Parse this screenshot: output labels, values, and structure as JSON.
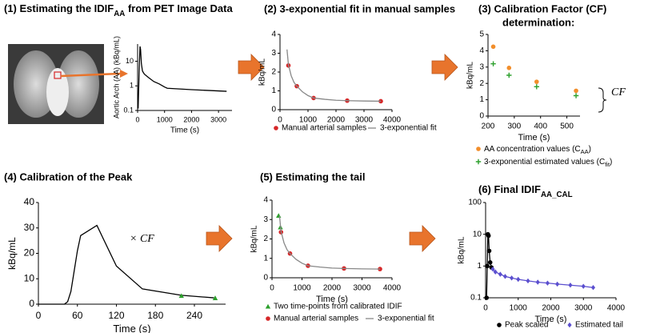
{
  "chart_data": [
    {
      "type": "line",
      "title": [
        "(1) Estimating the IDIF",
        "AA",
        " from PET Image Data"
      ],
      "xlabel": "Time (s)",
      "ylabel": "Aortic Arch (AA) (kBq/mL)",
      "yscale": "log",
      "xlim": [
        0,
        3500
      ],
      "xticks": [
        0,
        1000,
        2000,
        3000
      ],
      "ylim": [
        0.1,
        50
      ],
      "yticks": [
        0.1,
        1,
        10
      ],
      "series": [
        {
          "color": "#000000",
          "line": true,
          "x": [
            20,
            60,
            90,
            110,
            140,
            180,
            250,
            400,
            600,
            800,
            1000,
            1100,
            2000,
            3300
          ],
          "values": [
            0.12,
            5,
            40,
            30,
            8,
            4,
            3,
            2.2,
            1.5,
            1.2,
            0.9,
            0.8,
            0.7,
            0.6
          ]
        }
      ]
    },
    {
      "type": "scatter",
      "title": "(2) 3-exponential fit in manual samples",
      "ylabel": "kBq/mL",
      "xlim": [
        0,
        4000
      ],
      "xticks": [
        0,
        1000,
        2000,
        3000,
        4000
      ],
      "ylim": [
        0,
        4
      ],
      "yticks": [
        0,
        1,
        2,
        3,
        4
      ],
      "series": [
        {
          "name": "Manual arterial samples",
          "color": "#d62728",
          "marker": "circle",
          "x": [
            300,
            600,
            1200,
            2400,
            3600
          ],
          "values": [
            2.35,
            1.25,
            0.62,
            0.48,
            0.45
          ]
        },
        {
          "name": "3-exponential fit",
          "color": "#888888",
          "line": true,
          "x": [
            250,
            300,
            400,
            500,
            600,
            800,
            1000,
            1200,
            1600,
            2000,
            2400,
            3000,
            3600
          ],
          "values": [
            3.2,
            2.4,
            1.8,
            1.45,
            1.25,
            0.95,
            0.75,
            0.62,
            0.55,
            0.5,
            0.48,
            0.46,
            0.45
          ]
        }
      ]
    },
    {
      "type": "scatter",
      "title": "(3) Calibration Factor (CF)",
      "subtitle": "determination:",
      "xlabel": "Time (s)",
      "ylabel": "kBq/mL",
      "annotation": "CF",
      "xlim": [
        200,
        550
      ],
      "xticks": [
        200,
        300,
        400,
        500
      ],
      "ylim": [
        0,
        5
      ],
      "yticks": [
        0,
        1,
        2,
        3,
        4,
        5
      ],
      "series": [
        {
          "name": [
            "AA concentration values (C",
            "AA",
            ")"
          ],
          "color": "#f28e2b",
          "marker": "circle",
          "x": [
            220,
            280,
            385,
            535
          ],
          "values": [
            4.25,
            2.95,
            2.1,
            1.55
          ]
        },
        {
          "name": [
            "3-exponential estimated values (C",
            "fit",
            ")"
          ],
          "color": "#2ca02c",
          "marker": "plus",
          "x": [
            220,
            280,
            385,
            535
          ],
          "values": [
            3.2,
            2.5,
            1.8,
            1.25
          ]
        }
      ]
    },
    {
      "type": "line",
      "title": "(4) Calibration of the Peak",
      "xlabel": "Time (s)",
      "ylabel": "kBq/mL",
      "annotation": "× CF",
      "xlim": [
        0,
        288
      ],
      "xticks": [
        0,
        60,
        120,
        180,
        240
      ],
      "ylim": [
        0,
        40
      ],
      "yticks": [
        0,
        10,
        20,
        30,
        40
      ],
      "series": [
        {
          "color": "#000000",
          "line": true,
          "x": [
            0,
            40,
            45,
            50,
            55,
            60,
            65,
            90,
            120,
            160,
            220,
            270
          ],
          "values": [
            0,
            0,
            1,
            5,
            13,
            21,
            27,
            31,
            15,
            6,
            3.5,
            2.5
          ]
        },
        {
          "color": "#2ca02c",
          "marker": "triangle",
          "x": [
            220,
            272
          ],
          "values": [
            3.3,
            2.4
          ]
        }
      ]
    },
    {
      "type": "scatter",
      "title": "(5) Estimating the tail",
      "xlabel": "Time (s)",
      "ylabel": "kBq/mL",
      "xlim": [
        0,
        4000
      ],
      "xticks": [
        0,
        1000,
        2000,
        3000,
        4000
      ],
      "ylim": [
        0,
        4
      ],
      "yticks": [
        0,
        1,
        2,
        3,
        4
      ],
      "series": [
        {
          "name": "Two time-points from calibrated IDIF",
          "color": "#2ca02c",
          "marker": "triangle",
          "x": [
            220,
            280
          ],
          "values": [
            3.2,
            2.6
          ]
        },
        {
          "name": "Manual arterial samples",
          "color": "#d62728",
          "marker": "circle",
          "x": [
            300,
            600,
            1200,
            2400,
            3600
          ],
          "values": [
            2.35,
            1.25,
            0.62,
            0.48,
            0.45
          ]
        },
        {
          "name": "3-exponential fit",
          "color": "#888888",
          "line": true,
          "x": [
            250,
            300,
            400,
            500,
            600,
            800,
            1000,
            1200,
            1600,
            2000,
            2400,
            3000,
            3600
          ],
          "values": [
            3.2,
            2.4,
            1.8,
            1.45,
            1.25,
            0.95,
            0.75,
            0.62,
            0.55,
            0.5,
            0.48,
            0.46,
            0.45
          ]
        }
      ]
    },
    {
      "type": "line",
      "title": [
        "(6) Final IDIF",
        "AA_CAL"
      ],
      "xlabel": "Time (s)",
      "ylabel": "kBq/mL",
      "yscale": "log",
      "xlim": [
        0,
        4000
      ],
      "xticks": [
        0,
        1000,
        2000,
        3000,
        4000
      ],
      "ylim": [
        0.1,
        100
      ],
      "yticks": [
        0.1,
        1,
        10,
        100
      ],
      "series": [
        {
          "name": "Peak scaled",
          "color": "#000000",
          "marker": "circle",
          "line": true,
          "x": [
            30,
            50,
            70,
            90,
            110,
            140,
            180
          ],
          "values": [
            0.1,
            1,
            10,
            9,
            3,
            1.3,
            0.9
          ]
        },
        {
          "name": "Estimated tail",
          "color": "#5b4fcf",
          "marker": "diamond",
          "line": true,
          "x": [
            220,
            300,
            450,
            600,
            800,
            1000,
            1300,
            1600,
            1900,
            2200,
            2600,
            3000,
            3300
          ],
          "values": [
            0.8,
            0.65,
            0.55,
            0.47,
            0.42,
            0.38,
            0.34,
            0.31,
            0.29,
            0.27,
            0.25,
            0.23,
            0.21
          ]
        }
      ]
    }
  ]
}
